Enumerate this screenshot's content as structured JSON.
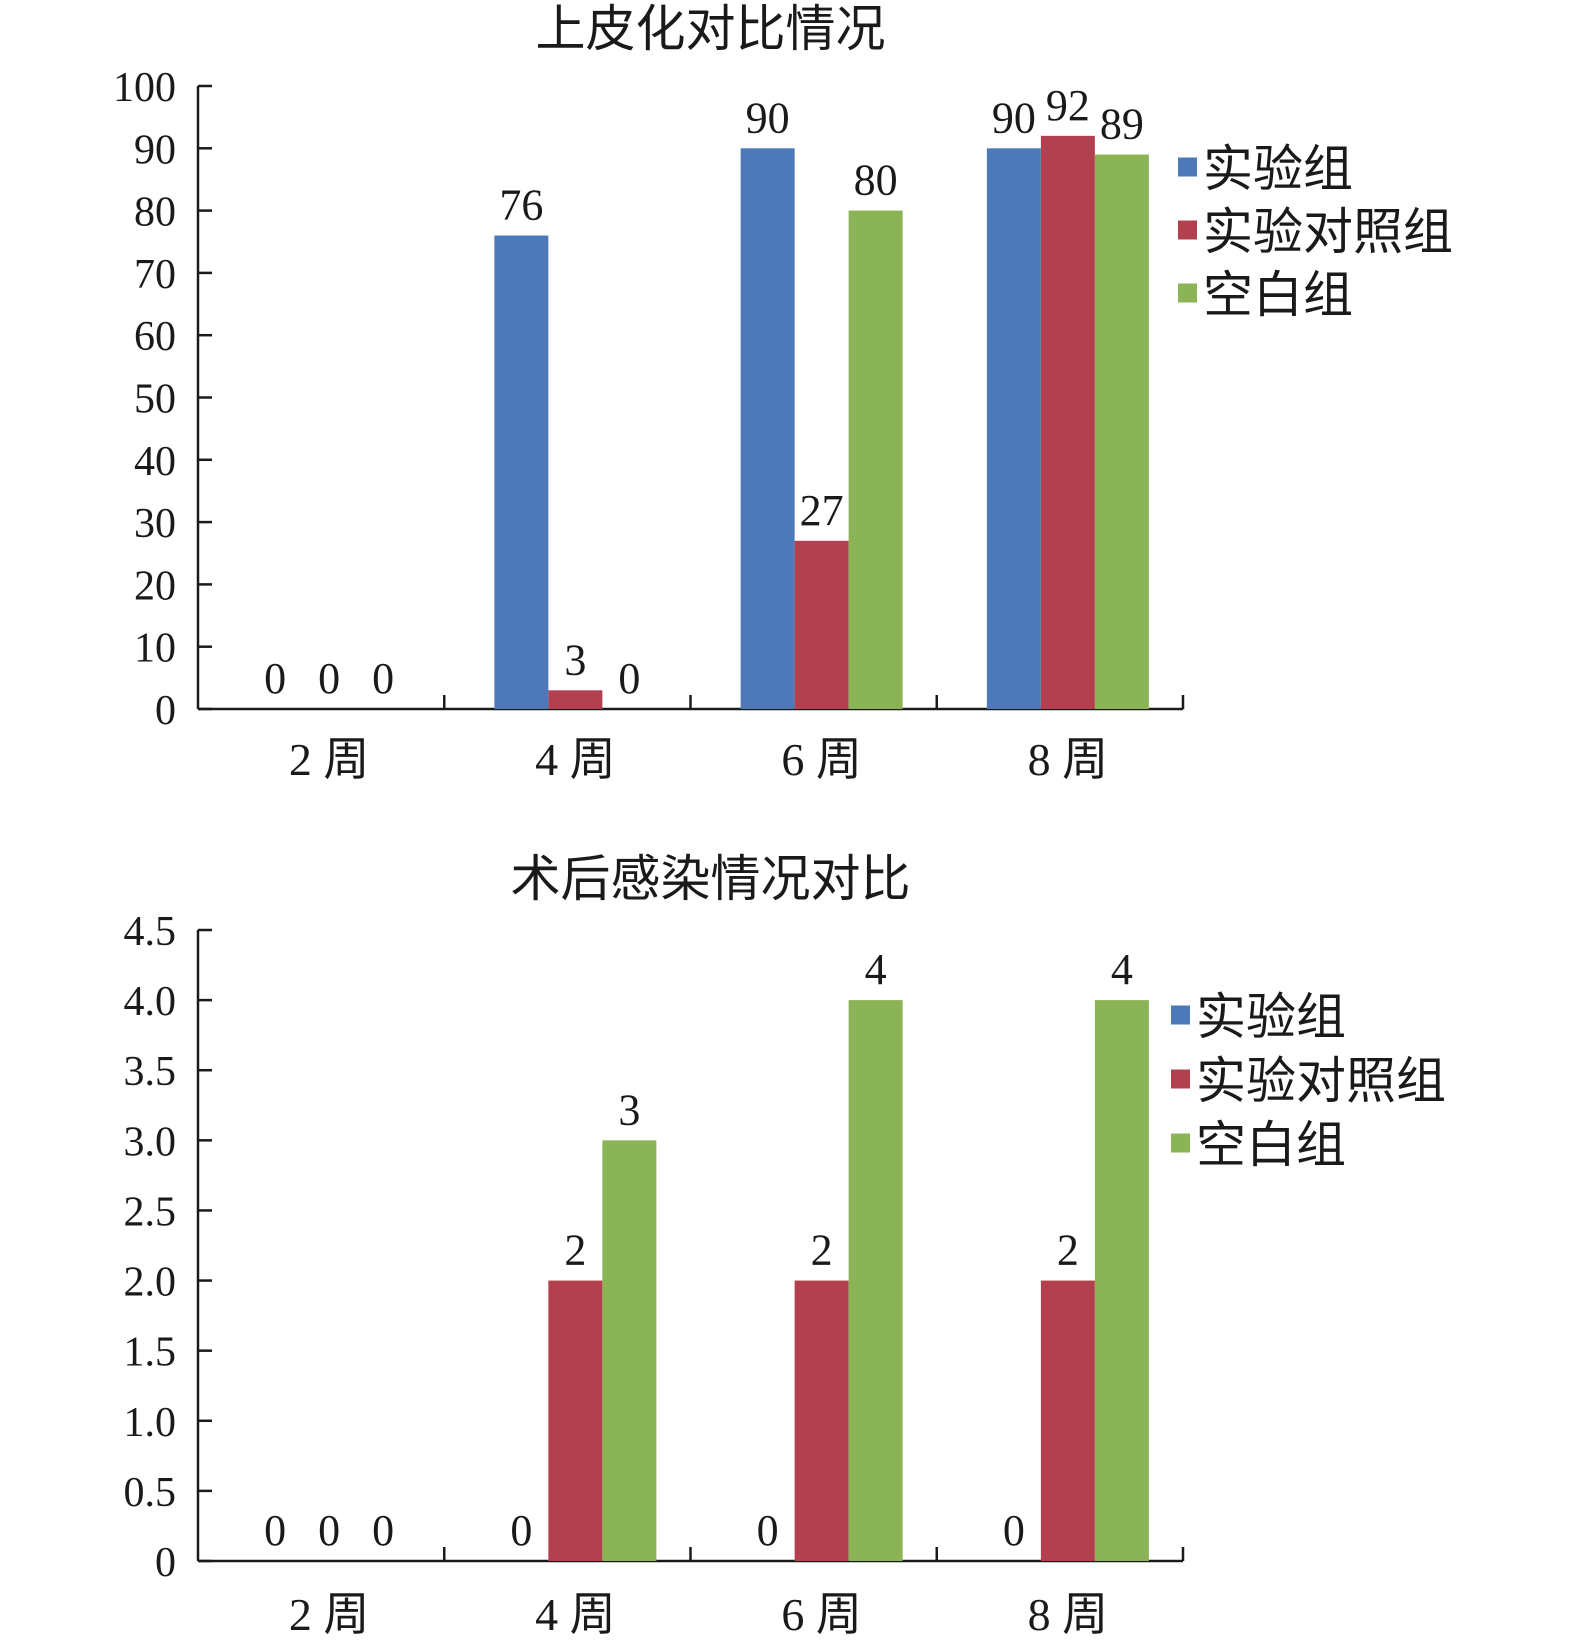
{
  "chart_data": [
    {
      "type": "bar",
      "title": "上皮化对比情况",
      "categories": [
        "2 周",
        "4 周",
        "6 周",
        "8 周"
      ],
      "series": [
        {
          "name": "实验组",
          "color": "#4e79b9",
          "values": [
            0,
            76,
            90,
            90
          ]
        },
        {
          "name": "实验对照组",
          "color": "#b3404f",
          "values": [
            0,
            3,
            27,
            92
          ]
        },
        {
          "name": "空白组",
          "color": "#8ab455",
          "values": [
            0,
            0,
            80,
            89
          ]
        }
      ],
      "value_labels": [
        [
          "0",
          "76",
          "90",
          "90"
        ],
        [
          "0",
          "3",
          "27",
          "92"
        ],
        [
          "0",
          "0",
          "80",
          "89"
        ]
      ],
      "ylim": [
        0,
        100
      ],
      "yticks": [
        "0",
        "10",
        "20",
        "30",
        "40",
        "50",
        "60",
        "70",
        "80",
        "90",
        "100"
      ],
      "legend": "right",
      "grid": false
    },
    {
      "type": "bar",
      "title": "术后感染情况对比",
      "categories": [
        "2 周",
        "4 周",
        "6 周",
        "8 周"
      ],
      "series": [
        {
          "name": "实验组",
          "color": "#4e79b9",
          "values": [
            0,
            0,
            0,
            0
          ]
        },
        {
          "name": "实验对照组",
          "color": "#b3404f",
          "values": [
            0,
            2,
            2,
            2
          ]
        },
        {
          "name": "空白组",
          "color": "#8ab455",
          "values": [
            0,
            3,
            4,
            4
          ]
        }
      ],
      "value_labels": [
        [
          "0",
          "0",
          "0",
          "0"
        ],
        [
          "0",
          "2",
          "2",
          "2"
        ],
        [
          "0",
          "3",
          "4",
          "4"
        ]
      ],
      "ylim": [
        0,
        4.5
      ],
      "yticks": [
        "0",
        "0.5",
        "1.0",
        "1.5",
        "2.0",
        "2.5",
        "3.0",
        "3.5",
        "4.0",
        "4.5"
      ],
      "legend": "right",
      "grid": false
    }
  ]
}
